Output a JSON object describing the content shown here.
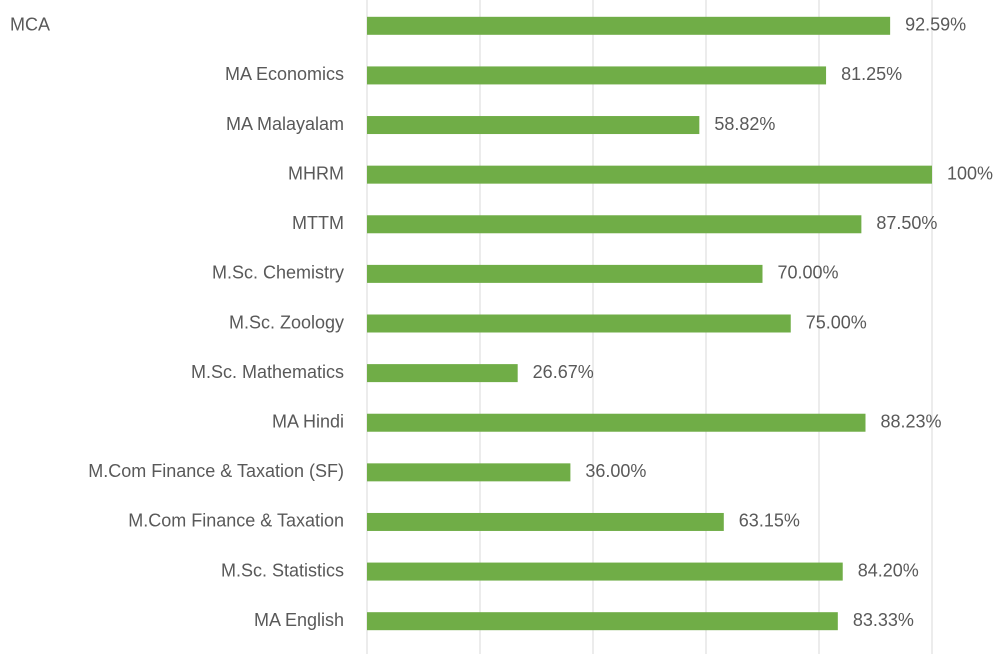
{
  "chart_data": {
    "type": "bar",
    "orientation": "horizontal",
    "categories": [
      "MCA",
      "MA Economics",
      "MA Malayalam",
      "MHRM",
      "MTTM",
      "M.Sc. Chemistry",
      "M.Sc. Zoology",
      "M.Sc. Mathematics",
      "MA Hindi",
      "M.Com Finance & Taxation (SF)",
      "M.Com Finance & Taxation",
      "M.Sc. Statistics",
      "MA English"
    ],
    "values": [
      92.59,
      81.25,
      58.82,
      100,
      87.5,
      70,
      75,
      26.67,
      88.23,
      36,
      63.15,
      84.2,
      83.33
    ],
    "value_labels": [
      "92.59%",
      "81.25%",
      "58.82%",
      "100%",
      "87.50%",
      "70.00%",
      "75.00%",
      "26.67%",
      "88.23%",
      "36.00%",
      "63.15%",
      "84.20%",
      "83.33%"
    ],
    "color": "#70ad47",
    "xlim": [
      0,
      100
    ],
    "xticks": [
      0,
      20,
      40,
      60,
      80,
      100
    ],
    "grid": true
  }
}
